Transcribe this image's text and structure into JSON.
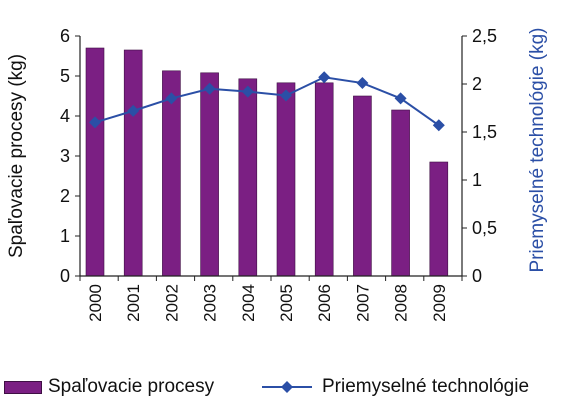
{
  "chart_data": {
    "type": "bar",
    "categories": [
      "2000",
      "2001",
      "2002",
      "2003",
      "2004",
      "2005",
      "2006",
      "2007",
      "2008",
      "2009"
    ],
    "series": [
      {
        "name": "Spaľovacie procesy",
        "type": "bar",
        "axis": "left",
        "color": "#7b1f83",
        "values": [
          5.7,
          5.65,
          5.13,
          5.08,
          4.93,
          4.83,
          4.83,
          4.5,
          4.15,
          2.85
        ]
      },
      {
        "name": "Priemyselné technológie",
        "type": "line",
        "axis": "right",
        "color": "#2b4fa6",
        "values": [
          1.6,
          1.72,
          1.85,
          1.95,
          1.92,
          1.88,
          2.07,
          2.01,
          1.85,
          1.57
        ]
      }
    ],
    "ylabel_left": "Spaľovacie procesy (kg)",
    "ylabel_right": "Priemyselné technológie (kg)",
    "ylim_left": [
      0,
      6
    ],
    "ylim_right": [
      0,
      2.5
    ],
    "yticks_left": [
      "0",
      "1",
      "2",
      "3",
      "4",
      "5",
      "6"
    ],
    "yticks_right": [
      "0",
      "0,5",
      "1",
      "1,5",
      "2",
      "2,5"
    ],
    "grid": false,
    "legend_position": "bottom",
    "colors": {
      "bar": "#7b1f83",
      "line": "#2b4fa6",
      "axis": "#222222",
      "right_label": "#2b4fa6"
    }
  },
  "legend": {
    "bar_label": "Spaľovacie procesy",
    "line_label": "Priemyselné technológie"
  }
}
